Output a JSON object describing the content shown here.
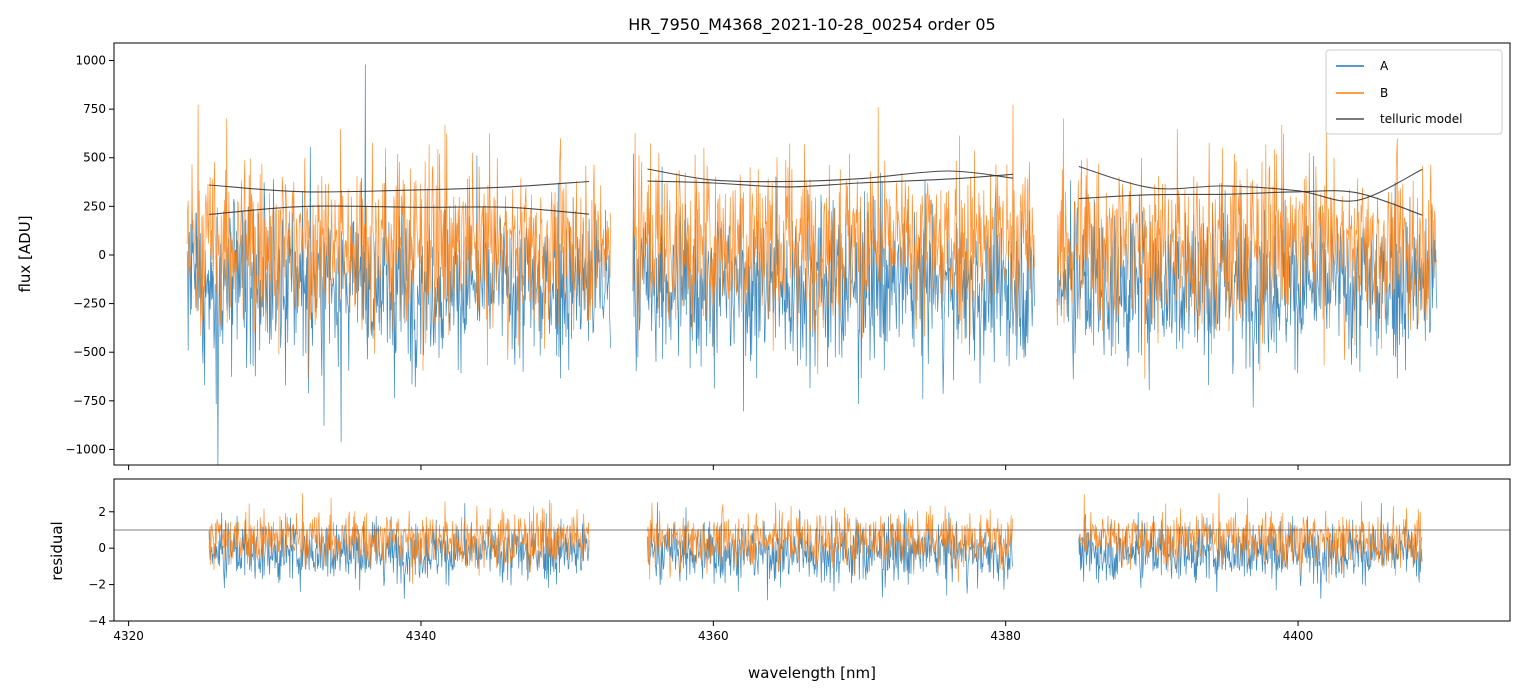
{
  "figure": {
    "title": "HR_7950_M4368_2021-10-28_00254  order 05"
  },
  "colors": {
    "A": "#1f77b4",
    "B": "#ff7f0e",
    "telluric": "#2b2b2b",
    "residual_line": "#555555"
  },
  "chart_data": [
    {
      "type": "line",
      "panel": "flux",
      "title": "HR_7950_M4368_2021-10-28_00254  order 05",
      "xlabel": "",
      "ylabel": "flux [ADU]",
      "xlim": [
        4319.0,
        4414.5
      ],
      "ylim": [
        -1080,
        1090
      ],
      "yticks": [
        -1000,
        -750,
        -500,
        -250,
        0,
        250,
        500,
        750,
        1000
      ],
      "yticklabels": [
        "−1000",
        "−750",
        "−500",
        "−250",
        "0",
        "250",
        "500",
        "750",
        "1000"
      ],
      "xticks": [
        4320,
        4340,
        4360,
        4380,
        4400
      ],
      "grid": false,
      "legend": {
        "placement": "top-right",
        "entries": [
          "A",
          "B",
          "telluric model"
        ]
      },
      "series": [
        {
          "name": "A",
          "segments": [
            {
              "x_range": [
                4324.0,
                4353.0
              ],
              "mean": -150,
              "spread": 320
            },
            {
              "x_range": [
                4354.5,
                4382.0
              ],
              "mean": -150,
              "spread": 320
            },
            {
              "x_range": [
                4383.5,
                4409.5
              ],
              "mean": -150,
              "spread": 320
            }
          ]
        },
        {
          "name": "B",
          "segments": [
            {
              "x_range": [
                4324.0,
                4353.0
              ],
              "mean": 60,
              "spread": 340
            },
            {
              "x_range": [
                4354.5,
                4382.0
              ],
              "mean": 60,
              "spread": 340
            },
            {
              "x_range": [
                4383.5,
                4409.5
              ],
              "mean": 60,
              "spread": 340
            }
          ]
        },
        {
          "name": "telluric model",
          "curves": [
            {
              "x": [
                4325.5,
                4332,
                4340,
                4346,
                4351.5
              ],
              "y": [
                360,
                325,
                335,
                350,
                378
              ]
            },
            {
              "x": [
                4325.5,
                4332,
                4340,
                4346,
                4351.5
              ],
              "y": [
                208,
                250,
                245,
                245,
                210
              ]
            },
            {
              "x": [
                4355.5,
                4360,
                4365,
                4370,
                4376,
                4380.5
              ],
              "y": [
                442,
                385,
                378,
                392,
                432,
                395
              ]
            },
            {
              "x": [
                4355.5,
                4360,
                4365,
                4370,
                4376,
                4380.5
              ],
              "y": [
                380,
                370,
                350,
                370,
                390,
                415
              ]
            },
            {
              "x": [
                4385.0,
                4390,
                4395,
                4400,
                4404,
                4408.5
              ],
              "y": [
                455,
                345,
                355,
                330,
                280,
                440
              ]
            },
            {
              "x": [
                4385.0,
                4390,
                4395,
                4400,
                4404,
                4408.5
              ],
              "y": [
                290,
                310,
                312,
                325,
                320,
                205
              ]
            }
          ]
        }
      ]
    },
    {
      "type": "line",
      "panel": "residual",
      "xlabel": "wavelength [nm]",
      "ylabel": "residual",
      "xlim": [
        4319.0,
        4414.5
      ],
      "ylim": [
        -4,
        3.8
      ],
      "yticks": [
        -4,
        -2,
        0,
        2
      ],
      "yticklabels": [
        "−4",
        "−2",
        "0",
        "2"
      ],
      "xticks": [
        4320,
        4340,
        4360,
        4380,
        4400
      ],
      "xticklabels": [
        "4320",
        "4340",
        "4360",
        "4380",
        "4400"
      ],
      "reference_line": 1,
      "grid": false,
      "series": [
        {
          "name": "A",
          "segments": [
            {
              "x_range": [
                4325.5,
                4351.5
              ],
              "mean": -0.2,
              "spread": 1.3
            },
            {
              "x_range": [
                4355.5,
                4380.5
              ],
              "mean": -0.2,
              "spread": 1.3
            },
            {
              "x_range": [
                4385.0,
                4408.5
              ],
              "mean": -0.2,
              "spread": 1.3
            }
          ]
        },
        {
          "name": "B",
          "segments": [
            {
              "x_range": [
                4325.5,
                4351.5
              ],
              "mean": 0.5,
              "spread": 1.2
            },
            {
              "x_range": [
                4355.5,
                4380.5
              ],
              "mean": 0.5,
              "spread": 1.2
            },
            {
              "x_range": [
                4385.0,
                4408.5
              ],
              "mean": 0.5,
              "spread": 1.2
            }
          ]
        }
      ]
    }
  ]
}
